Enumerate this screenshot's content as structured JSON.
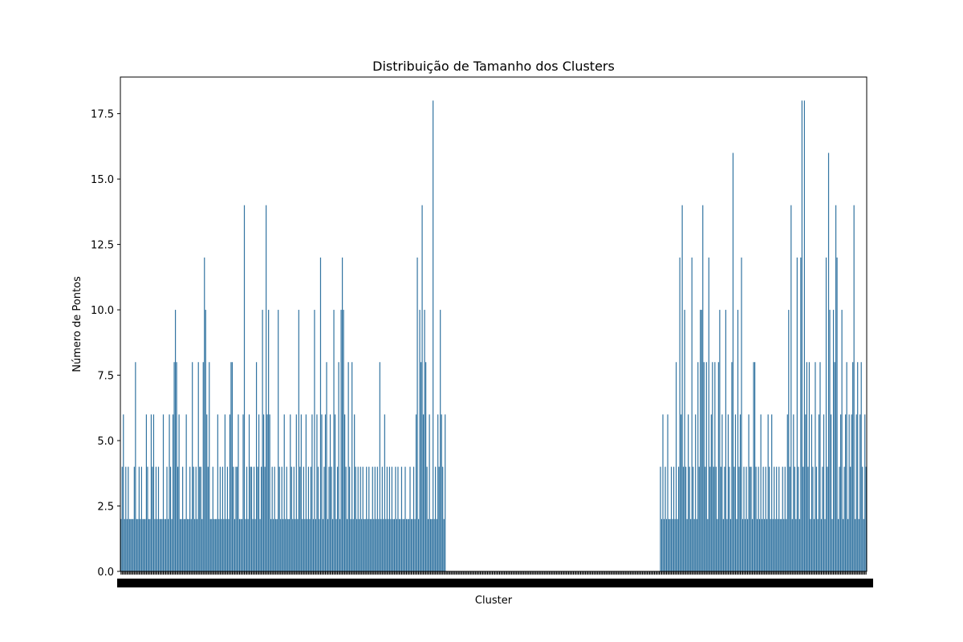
{
  "chart_data": {
    "type": "bar",
    "title": "Distribuição de Tamanho dos Clusters",
    "xlabel": "Cluster",
    "ylabel": "Número de Pontos",
    "ylim": [
      0,
      18.9
    ],
    "yticks": [
      0.0,
      2.5,
      5.0,
      7.5,
      10.0,
      12.5,
      15.0,
      17.5
    ],
    "yticklabels": [
      "0.0",
      "2.5",
      "5.0",
      "7.5",
      "10.0",
      "12.5",
      "15.0",
      "17.5"
    ],
    "grid": false,
    "legend": "none",
    "bar_color": "#3274a1",
    "series": [
      {
        "values": [
          2,
          4,
          6,
          2,
          4,
          2,
          4,
          2,
          2,
          2,
          2,
          4,
          8,
          2,
          2,
          4,
          2,
          4,
          2,
          2,
          2,
          6,
          4,
          2,
          2,
          6,
          4,
          6,
          2,
          4,
          2,
          4,
          2,
          2,
          2,
          6,
          2,
          2,
          4,
          2,
          6,
          4,
          2,
          6,
          8,
          10,
          8,
          4,
          6,
          2,
          2,
          4,
          2,
          2,
          6,
          2,
          2,
          4,
          2,
          8,
          4,
          2,
          4,
          2,
          8,
          4,
          4,
          2,
          8,
          12,
          10,
          6,
          4,
          8,
          2,
          2,
          4,
          2,
          2,
          2,
          6,
          2,
          4,
          2,
          4,
          2,
          6,
          2,
          4,
          2,
          6,
          8,
          8,
          4,
          2,
          4,
          4,
          6,
          2,
          2,
          2,
          6,
          14,
          2,
          4,
          2,
          6,
          4,
          4,
          2,
          4,
          2,
          8,
          4,
          6,
          2,
          4,
          10,
          6,
          4,
          14,
          6,
          10,
          6,
          2,
          4,
          2,
          4,
          2,
          2,
          10,
          4,
          2,
          4,
          2,
          6,
          2,
          4,
          2,
          2,
          6,
          4,
          2,
          4,
          2,
          6,
          2,
          10,
          4,
          6,
          2,
          4,
          2,
          6,
          2,
          4,
          2,
          4,
          6,
          2,
          10,
          2,
          6,
          4,
          2,
          12,
          6,
          2,
          4,
          6,
          8,
          2,
          4,
          6,
          4,
          2,
          10,
          6,
          2,
          4,
          8,
          2,
          10,
          12,
          10,
          6,
          4,
          2,
          8,
          4,
          2,
          8,
          2,
          6,
          4,
          2,
          4,
          2,
          4,
          2,
          4,
          2,
          2,
          4,
          2,
          4,
          2,
          2,
          4,
          2,
          4,
          2,
          4,
          2,
          8,
          2,
          4,
          2,
          6,
          2,
          4,
          2,
          4,
          2,
          4,
          2,
          2,
          4,
          2,
          4,
          2,
          2,
          4,
          2,
          2,
          4,
          2,
          2,
          2,
          4,
          2,
          2,
          4,
          2,
          6,
          12,
          2,
          10,
          8,
          14,
          6,
          10,
          8,
          4,
          2,
          6,
          2,
          2,
          18,
          2,
          4,
          2,
          6,
          4,
          10,
          6,
          4,
          2,
          6,
          0,
          0,
          0,
          0,
          0,
          0,
          0,
          0,
          0,
          0,
          0,
          0,
          0,
          0,
          0,
          0,
          0,
          0,
          0,
          0,
          0,
          0,
          0,
          0,
          0,
          0,
          0,
          0,
          0,
          0,
          0,
          0,
          0,
          0,
          0,
          0,
          0,
          0,
          0,
          0,
          0,
          0,
          0,
          0,
          0,
          0,
          0,
          0,
          0,
          0,
          0,
          0,
          0,
          0,
          0,
          0,
          0,
          0,
          0,
          0,
          0,
          0,
          0,
          0,
          0,
          0,
          0,
          0,
          0,
          0,
          0,
          0,
          0,
          0,
          0,
          0,
          0,
          0,
          0,
          0,
          0,
          0,
          0,
          0,
          0,
          0,
          0,
          0,
          0,
          0,
          0,
          0,
          0,
          0,
          0,
          0,
          0,
          0,
          0,
          0,
          0,
          0,
          0,
          0,
          0,
          0,
          0,
          0,
          0,
          0,
          0,
          0,
          0,
          0,
          0,
          0,
          0,
          0,
          0,
          0,
          0,
          0,
          0,
          0,
          0,
          0,
          0,
          0,
          0,
          0,
          0,
          0,
          0,
          0,
          0,
          0,
          0,
          0,
          0,
          0,
          0,
          0,
          0,
          0,
          0,
          0,
          0,
          0,
          0,
          0,
          0,
          0,
          0,
          0,
          0,
          0,
          0,
          0,
          0,
          0,
          0,
          0,
          0,
          0,
          0,
          0,
          0,
          0,
          0,
          0,
          0,
          0,
          0,
          0,
          0,
          0,
          0,
          4,
          2,
          6,
          2,
          4,
          2,
          6,
          2,
          2,
          4,
          2,
          4,
          2,
          8,
          2,
          4,
          12,
          6,
          14,
          4,
          10,
          4,
          2,
          6,
          4,
          2,
          12,
          4,
          2,
          6,
          2,
          8,
          4,
          10,
          10,
          14,
          8,
          4,
          8,
          2,
          12,
          4,
          6,
          8,
          4,
          8,
          4,
          2,
          8,
          10,
          4,
          6,
          2,
          4,
          10,
          2,
          6,
          4,
          2,
          8,
          16,
          4,
          6,
          2,
          10,
          4,
          6,
          12,
          2,
          4,
          2,
          4,
          2,
          6,
          4,
          4,
          2,
          8,
          8,
          4,
          2,
          4,
          2,
          6,
          2,
          4,
          2,
          4,
          2,
          6,
          4,
          2,
          6,
          2,
          4,
          2,
          4,
          2,
          4,
          2,
          2,
          4,
          2,
          4,
          2,
          6,
          10,
          4,
          14,
          2,
          6,
          4,
          2,
          12,
          4,
          2,
          12,
          18,
          4,
          18,
          6,
          8,
          4,
          8,
          2,
          6,
          4,
          2,
          8,
          4,
          2,
          6,
          8,
          2,
          4,
          6,
          2,
          12,
          4,
          16,
          10,
          6,
          2,
          10,
          8,
          14,
          12,
          2,
          4,
          6,
          10,
          2,
          4,
          6,
          8,
          2,
          6,
          4,
          6,
          8,
          14,
          2,
          6,
          8,
          2,
          6,
          8,
          4,
          2,
          6,
          4
        ]
      }
    ]
  }
}
